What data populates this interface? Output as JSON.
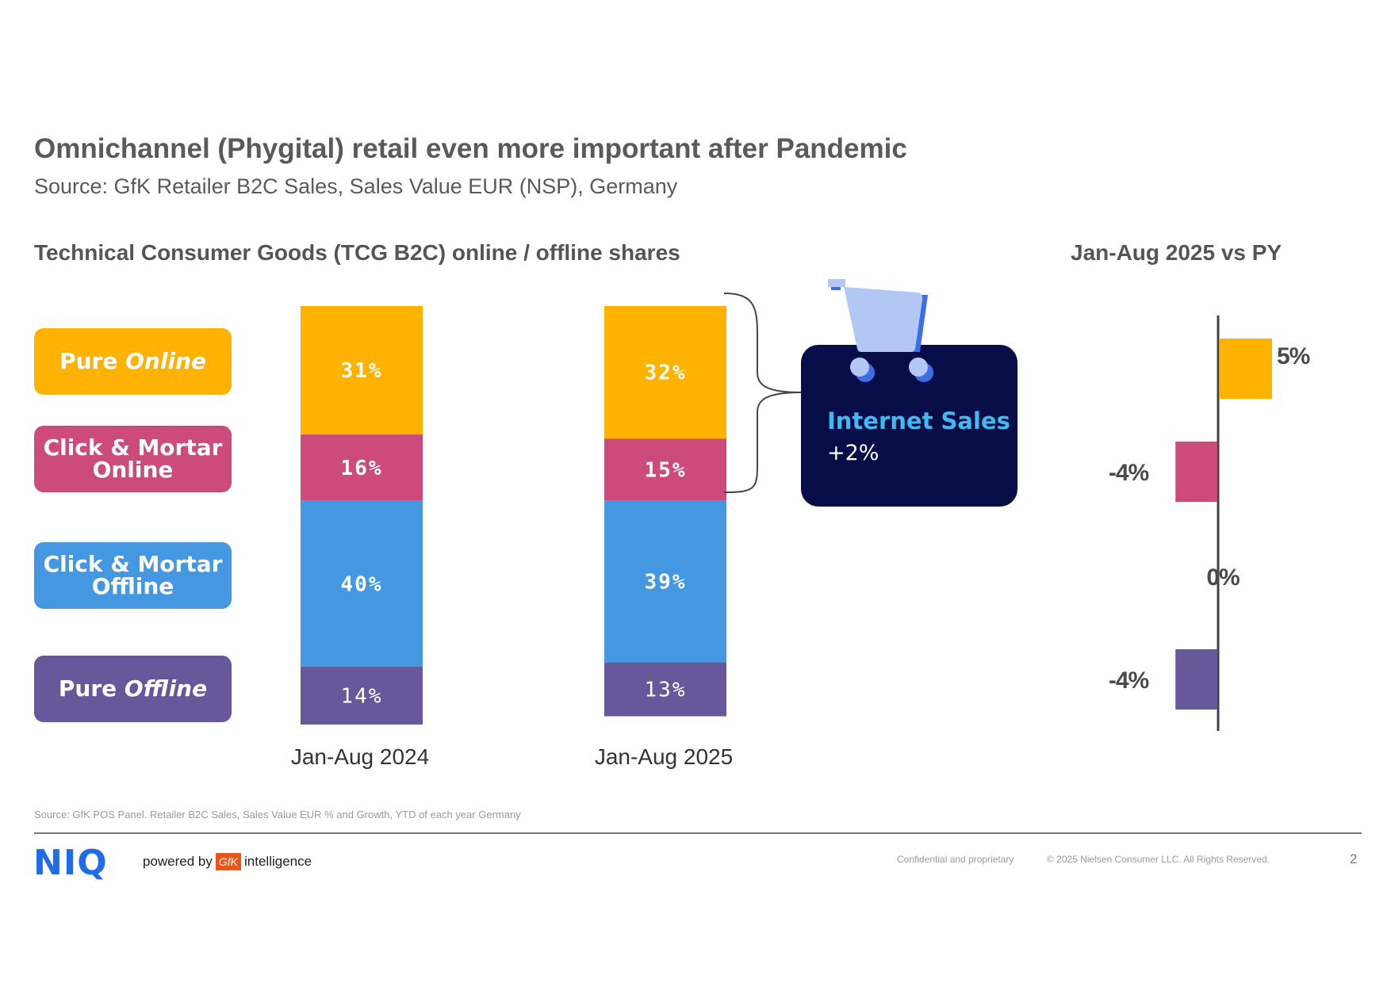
{
  "header": {
    "title": "Omnichannel (Phygital) retail even more important after Pandemic",
    "subtitle": "Source: GfK Retailer B2C Sales, Sales Value EUR (NSP), Germany"
  },
  "sections": {
    "left_title": "Technical Consumer Goods (TCG B2C) online / offline shares",
    "right_title": "Jan-Aug 2025 vs PY"
  },
  "legend": [
    {
      "line1": "Pure ",
      "line1_em": "Online",
      "line2": "",
      "color": "#ffb300"
    },
    {
      "line1": "Click & Mortar",
      "line1_em": "",
      "line2": "Online",
      "color": "#cc4b7a"
    },
    {
      "line1": "Click & Mortar",
      "line1_em": "",
      "line2": "Offline",
      "color": "#4498e2"
    },
    {
      "line1": "Pure ",
      "line1_em": "Offline",
      "line2": "",
      "color": "#66589a"
    }
  ],
  "callout": {
    "label": "Internet Sales",
    "value": "+2%"
  },
  "chart_data": [
    {
      "type": "bar",
      "stacked": true,
      "title": "Technical Consumer Goods (TCG B2C) online / offline shares",
      "categories": [
        "Jan-Aug 2024",
        "Jan-Aug 2025"
      ],
      "series": [
        {
          "name": "Pure Online",
          "color": "#ffb300",
          "values": [
            31,
            32
          ],
          "labels": [
            "31%",
            "32%"
          ]
        },
        {
          "name": "Click & Mortar Online",
          "color": "#cc4b7a",
          "values": [
            16,
            15
          ],
          "labels": [
            "16%",
            "15%"
          ]
        },
        {
          "name": "Click & Mortar Offline",
          "color": "#4498e2",
          "values": [
            40,
            39
          ],
          "labels": [
            "40%",
            "39%"
          ]
        },
        {
          "name": "Pure Offline",
          "color": "#66589a",
          "values": [
            14,
            13
          ],
          "labels": [
            "14%",
            "13%"
          ]
        }
      ],
      "ylim": [
        0,
        101
      ]
    },
    {
      "type": "bar",
      "orientation": "horizontal",
      "title": "Jan-Aug 2025 vs PY",
      "categories": [
        "Pure Online",
        "Click & Mortar Online",
        "Click & Mortar Offline",
        "Pure Offline"
      ],
      "values": [
        5,
        -4,
        0,
        -4
      ],
      "labels": [
        "5%",
        "-4%",
        "0%",
        "-4%"
      ],
      "colors": [
        "#ffb300",
        "#cc4b7a",
        "#4498e2",
        "#66589a"
      ]
    }
  ],
  "footer": {
    "footnote": "Source: GfK POS Panel. Retailer B2C Sales, Sales Value EUR % and Growth, YTD of each year Germany",
    "logo": "NIQ",
    "powered_by": "powered by",
    "gfk": "GfK",
    "intelligence": "intelligence",
    "confidential": "Confidential and proprietary",
    "copyright": "© 2025 Nielsen Consumer LLC. All Rights Reserved.",
    "page": "2"
  }
}
